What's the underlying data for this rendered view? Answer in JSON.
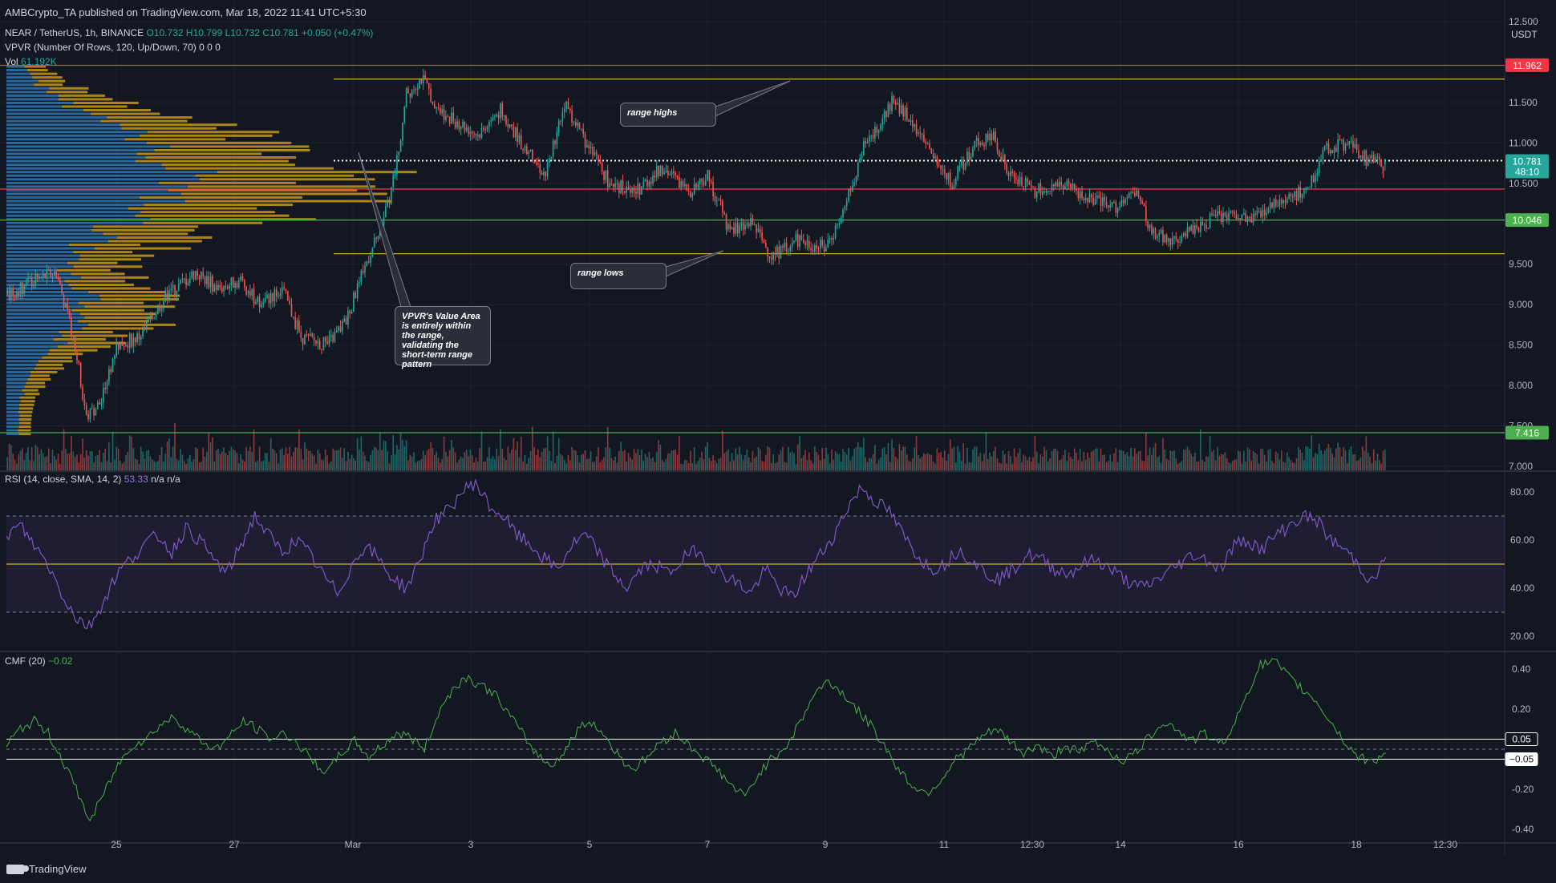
{
  "publisher": "AMBCrypto_TA published on TradingView.com, Mar 18, 2022 11:41 UTC+5:30",
  "symbol_line": {
    "name": "NEAR / TetherUS, 1h, BINANCE",
    "ohlc": "O10.732 H10.799 L10.732 C10.781",
    "change": "+0.050 (+0.47%)"
  },
  "vpvr_label": "VPVR (Number Of Rows, 120, Up/Down, 70)  0  0  0",
  "volume_label": "Vol",
  "volume_value": "61.192K",
  "rsi_label": "RSI (14, close, SMA, 14, 2)",
  "rsi_value": "53.33",
  "rsi_extra": "n/a  n/a",
  "cmf_label": "CMF (20)",
  "cmf_value": "−0.02",
  "annotations": {
    "range_highs": "range highs",
    "range_lows": "range lows",
    "vpvr_note": "VPVR's Value Area is entirely within the range, validating the short-term range pattern"
  },
  "branding": "TradingView",
  "currency": "USDT",
  "colors": {
    "background": "#131722",
    "up": "#26a69a",
    "down": "#ef5350",
    "range_line": "#c9a227",
    "resistance": "#f23645",
    "support": "#4caf50",
    "rsi": "#7e57c2",
    "cmf": "#4caf50",
    "vp_up": "#2e7dbd",
    "vp_down": "#d4a017"
  },
  "chart_data": [
    {
      "type": "candlestick",
      "title": "NEAR / TetherUS, 1h, BINANCE",
      "x_ticks": [
        "25",
        "27",
        "Mar",
        "3",
        "5",
        "7",
        "9",
        "11",
        "12:30",
        "14",
        "16",
        "18",
        "12:30"
      ],
      "y_ticks": [
        "12.500",
        "11.500",
        "11.000",
        "10.500",
        "9.500",
        "9.000",
        "8.500",
        "8.000",
        "7.500",
        "7.000"
      ],
      "ylim": [
        6.95,
        12.55
      ],
      "price_labels": [
        {
          "value": "11.962",
          "kind": "resistance"
        },
        {
          "value": "10.781",
          "kind": "current",
          "sub": "48:10"
        },
        {
          "value": "10.046",
          "kind": "support"
        },
        {
          "value": "7.416",
          "kind": "support"
        }
      ],
      "levels": [
        {
          "name": "range high",
          "value": 11.79
        },
        {
          "name": "range low",
          "value": 9.63
        },
        {
          "name": "resistance",
          "value": 11.96
        },
        {
          "name": "red level",
          "value": 10.43
        },
        {
          "name": "support",
          "value": 10.046
        },
        {
          "name": "support",
          "value": 7.416
        },
        {
          "name": "last price",
          "value": 10.781
        }
      ],
      "close_path": [
        [
          0,
          9.1
        ],
        [
          14,
          9.3
        ],
        [
          26,
          9.4
        ],
        [
          36,
          8.5
        ],
        [
          42,
          7.6
        ],
        [
          50,
          7.8
        ],
        [
          58,
          8.5
        ],
        [
          70,
          8.6
        ],
        [
          84,
          9.1
        ],
        [
          100,
          9.4
        ],
        [
          112,
          9.2
        ],
        [
          124,
          9.3
        ],
        [
          134,
          9.0
        ],
        [
          146,
          9.2
        ],
        [
          156,
          8.6
        ],
        [
          170,
          8.5
        ],
        [
          180,
          8.8
        ],
        [
          192,
          9.6
        ],
        [
          198,
          9.9
        ],
        [
          206,
          10.6
        ],
        [
          212,
          11.6
        ],
        [
          220,
          11.8
        ],
        [
          230,
          11.4
        ],
        [
          250,
          11.1
        ],
        [
          262,
          11.4
        ],
        [
          276,
          10.9
        ],
        [
          286,
          10.6
        ],
        [
          296,
          11.5
        ],
        [
          310,
          10.9
        ],
        [
          320,
          10.5
        ],
        [
          334,
          10.4
        ],
        [
          348,
          10.7
        ],
        [
          362,
          10.4
        ],
        [
          372,
          10.6
        ],
        [
          384,
          9.9
        ],
        [
          396,
          10.0
        ],
        [
          406,
          9.6
        ],
        [
          420,
          9.8
        ],
        [
          434,
          9.7
        ],
        [
          444,
          10.1
        ],
        [
          454,
          10.9
        ],
        [
          462,
          11.2
        ],
        [
          470,
          11.5
        ],
        [
          480,
          11.3
        ],
        [
          492,
          10.8
        ],
        [
          502,
          10.5
        ],
        [
          514,
          11.0
        ],
        [
          524,
          11.1
        ],
        [
          532,
          10.6
        ],
        [
          546,
          10.4
        ],
        [
          560,
          10.5
        ],
        [
          574,
          10.3
        ],
        [
          588,
          10.2
        ],
        [
          600,
          10.4
        ],
        [
          608,
          9.9
        ],
        [
          620,
          9.8
        ],
        [
          634,
          10.0
        ],
        [
          646,
          10.1
        ],
        [
          660,
          10.05
        ],
        [
          676,
          10.3
        ],
        [
          690,
          10.4
        ],
        [
          700,
          10.9
        ],
        [
          712,
          11.0
        ],
        [
          722,
          10.8
        ],
        [
          732,
          10.7
        ]
      ],
      "close_path_x_note": "hour index from start of visible window",
      "ohlc_last": {
        "open": 10.732,
        "high": 10.799,
        "low": 10.732,
        "close": 10.781
      }
    },
    {
      "type": "line",
      "title": "RSI (14, close, SMA, 14, 2)",
      "y_ticks": [
        "80.00",
        "60.00",
        "40.00",
        "20.00"
      ],
      "ylim": [
        14,
        88
      ],
      "bands": {
        "upper": 70,
        "middle": 50,
        "lower": 30
      },
      "series": [
        {
          "name": "RSI",
          "values": [
            62,
            66,
            58,
            50,
            38,
            28,
            24,
            34,
            46,
            52,
            58,
            62,
            55,
            65,
            60,
            52,
            46,
            58,
            70,
            62,
            55,
            60,
            54,
            45,
            38,
            49,
            58,
            52,
            44,
            40,
            52,
            68,
            72,
            80,
            84,
            74,
            70,
            62,
            58,
            52,
            48,
            58,
            62,
            54,
            46,
            40,
            48,
            50,
            46,
            52,
            56,
            50,
            46,
            42,
            38,
            48,
            40,
            36,
            46,
            54,
            62,
            74,
            82,
            76,
            72,
            62,
            54,
            48,
            50,
            56,
            52,
            46,
            44,
            48,
            54,
            52,
            48,
            46,
            50,
            52,
            48,
            44,
            40,
            42,
            46,
            50,
            54,
            52,
            48,
            58,
            60,
            56,
            62,
            66,
            70,
            68,
            60,
            56,
            50,
            42,
            53
          ]
        }
      ]
    },
    {
      "type": "line",
      "title": "CMF (20)",
      "y_ticks": [
        "0.40",
        "0.20",
        "-0.20",
        "-0.40"
      ],
      "ylim": [
        -0.46,
        0.48
      ],
      "bands": {
        "upper": 0.05,
        "lower": -0.05
      },
      "price_labels": [
        {
          "value": "0.05"
        },
        {
          "value": "−0.05"
        }
      ],
      "series": [
        {
          "name": "CMF",
          "values": [
            0.02,
            0.1,
            0.14,
            0.08,
            -0.05,
            -0.2,
            -0.36,
            -0.22,
            -0.08,
            0.02,
            0.05,
            0.12,
            0.16,
            0.1,
            0.04,
            0.0,
            0.06,
            0.14,
            0.1,
            0.05,
            0.08,
            0.02,
            -0.06,
            -0.12,
            -0.02,
            0.04,
            -0.04,
            0.02,
            0.08,
            0.06,
            0.0,
            0.18,
            0.3,
            0.36,
            0.32,
            0.28,
            0.18,
            0.08,
            -0.02,
            -0.08,
            -0.02,
            0.1,
            0.14,
            0.06,
            -0.04,
            -0.1,
            -0.04,
            0.04,
            0.08,
            0.02,
            -0.04,
            -0.1,
            -0.18,
            -0.24,
            -0.12,
            -0.04,
            0.02,
            0.14,
            0.28,
            0.34,
            0.28,
            0.2,
            0.12,
            0.02,
            -0.1,
            -0.18,
            -0.22,
            -0.16,
            -0.06,
            0.0,
            0.06,
            0.1,
            0.04,
            -0.02,
            0.02,
            -0.04,
            0.02,
            -0.02,
            0.04,
            0.0,
            -0.06,
            -0.02,
            0.06,
            0.14,
            0.1,
            0.04,
            0.08,
            0.02,
            0.1,
            0.28,
            0.42,
            0.44,
            0.36,
            0.3,
            0.24,
            0.14,
            0.04,
            -0.04,
            -0.06,
            -0.02
          ]
        }
      ]
    }
  ]
}
